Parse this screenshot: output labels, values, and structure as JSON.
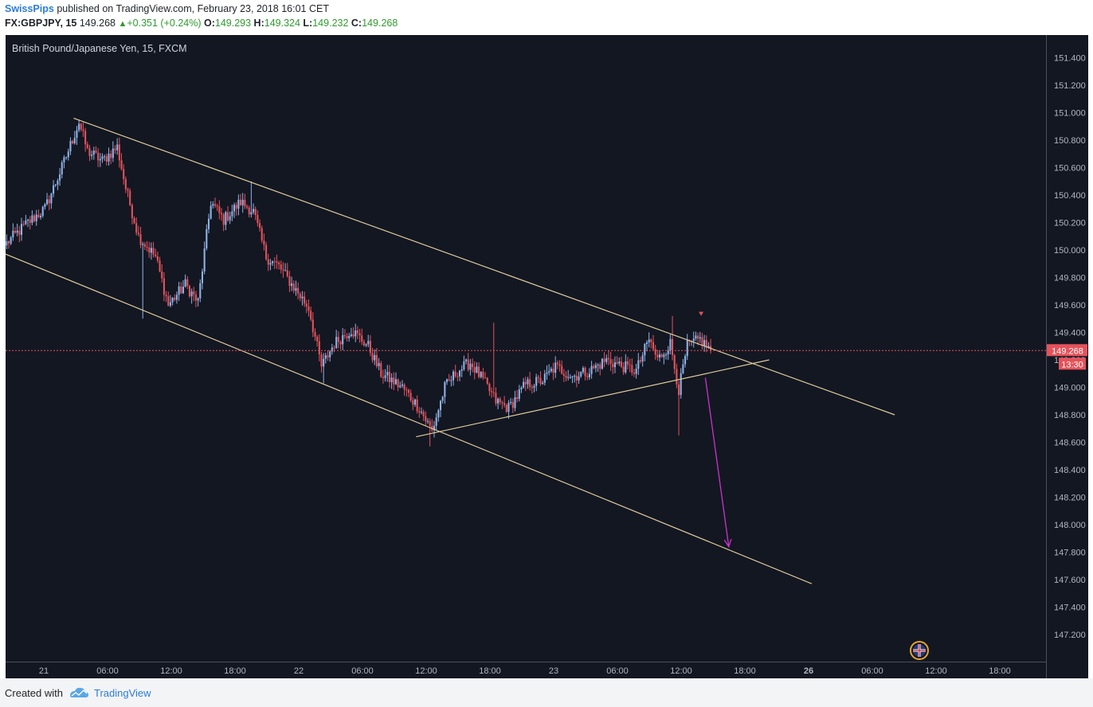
{
  "header": {
    "author": "SwissPips",
    "published": "published on TradingView.com, February 23, 2018 16:01 CET",
    "symbol": "FX:GBPJPY, 15",
    "price": "149.268",
    "change": "+0.351 (+0.24%)",
    "o_label": "O:",
    "o_val": "149.293",
    "h_label": "H:",
    "h_val": "149.324",
    "l_label": "L:",
    "l_val": "149.232",
    "c_label": "C:",
    "c_val": "149.268"
  },
  "footer": {
    "created_with": "Created with",
    "brand": "TradingView"
  },
  "chart_data": {
    "type": "candlestick",
    "title": "British Pound/Japanese Yen, 15, FXCM",
    "ylim": [
      147.0,
      151.6
    ],
    "y_ticks": [
      151.4,
      151.2,
      151.0,
      150.8,
      150.6,
      150.4,
      150.2,
      150.0,
      149.8,
      149.6,
      149.4,
      149.2,
      149.0,
      148.8,
      148.6,
      148.4,
      148.2,
      148.0,
      147.8,
      147.6,
      147.4,
      147.2
    ],
    "x_ticks": [
      "21",
      "06:00",
      "12:00",
      "18:00",
      "22",
      "06:00",
      "12:00",
      "18:00",
      "23",
      "06:00",
      "12:00",
      "18:00",
      "26",
      "06:00",
      "12:00",
      "18:00"
    ],
    "bold_x_ticks": [
      "26"
    ],
    "current_price": "149.268",
    "countdown": "13:30",
    "colors": {
      "background": "#131722",
      "up": "#8fb3e8",
      "down": "#e5535b",
      "trendline": "#e0cc9a",
      "arrow": "#cc33cc",
      "price_line": "#e5535b"
    },
    "anchors": [
      {
        "bar": 0,
        "price": 150.05
      },
      {
        "bar": 10,
        "price": 150.2
      },
      {
        "bar": 18,
        "price": 150.3
      },
      {
        "bar": 26,
        "price": 150.6
      },
      {
        "bar": 34,
        "price": 150.93
      },
      {
        "bar": 38,
        "price": 150.72
      },
      {
        "bar": 45,
        "price": 150.65
      },
      {
        "bar": 52,
        "price": 150.75
      },
      {
        "bar": 56,
        "price": 150.45
      },
      {
        "bar": 62,
        "price": 150.1
      },
      {
        "bar": 70,
        "price": 149.95
      },
      {
        "bar": 76,
        "price": 149.6
      },
      {
        "bar": 84,
        "price": 149.75
      },
      {
        "bar": 90,
        "price": 149.62
      },
      {
        "bar": 96,
        "price": 150.35
      },
      {
        "bar": 102,
        "price": 150.22
      },
      {
        "bar": 110,
        "price": 150.35
      },
      {
        "bar": 116,
        "price": 150.28
      },
      {
        "bar": 122,
        "price": 149.95
      },
      {
        "bar": 128,
        "price": 149.88
      },
      {
        "bar": 134,
        "price": 149.75
      },
      {
        "bar": 142,
        "price": 149.58
      },
      {
        "bar": 148,
        "price": 149.15
      },
      {
        "bar": 154,
        "price": 149.32
      },
      {
        "bar": 162,
        "price": 149.42
      },
      {
        "bar": 170,
        "price": 149.3
      },
      {
        "bar": 176,
        "price": 149.1
      },
      {
        "bar": 186,
        "price": 149.0
      },
      {
        "bar": 194,
        "price": 148.85
      },
      {
        "bar": 200,
        "price": 148.68
      },
      {
        "bar": 206,
        "price": 149.0
      },
      {
        "bar": 212,
        "price": 149.12
      },
      {
        "bar": 218,
        "price": 149.18
      },
      {
        "bar": 224,
        "price": 149.05
      },
      {
        "bar": 230,
        "price": 148.9
      },
      {
        "bar": 236,
        "price": 148.85
      },
      {
        "bar": 244,
        "price": 149.02
      },
      {
        "bar": 252,
        "price": 149.05
      },
      {
        "bar": 258,
        "price": 149.15
      },
      {
        "bar": 266,
        "price": 149.08
      },
      {
        "bar": 274,
        "price": 149.12
      },
      {
        "bar": 282,
        "price": 149.2
      },
      {
        "bar": 290,
        "price": 149.15
      },
      {
        "bar": 296,
        "price": 149.12
      },
      {
        "bar": 302,
        "price": 149.35
      },
      {
        "bar": 306,
        "price": 149.2
      },
      {
        "bar": 312,
        "price": 149.32
      },
      {
        "bar": 316,
        "price": 148.98
      },
      {
        "bar": 320,
        "price": 149.3
      },
      {
        "bar": 326,
        "price": 149.35
      },
      {
        "bar": 331,
        "price": 149.27
      }
    ],
    "extreme_wicks": [
      {
        "bar": 34,
        "high": 150.95
      },
      {
        "bar": 64,
        "low": 149.5
      },
      {
        "bar": 115,
        "high": 150.5
      },
      {
        "bar": 149,
        "low": 149.03
      },
      {
        "bar": 199,
        "low": 148.57
      },
      {
        "bar": 229,
        "high": 149.47
      },
      {
        "bar": 313,
        "high": 149.52
      },
      {
        "bar": 316,
        "low": 148.65
      }
    ],
    "lines": [
      {
        "from": {
          "bar": 32,
          "price": 150.96
        },
        "to": {
          "bar": 418,
          "price": 148.8
        }
      },
      {
        "from": {
          "bar": 0,
          "price": 149.97
        },
        "to": {
          "bar": 379,
          "price": 147.57
        }
      },
      {
        "from": {
          "bar": 193,
          "price": 148.64
        },
        "to": {
          "bar": 359,
          "price": 149.2
        }
      }
    ],
    "arrow": {
      "from": {
        "bar": 329,
        "price": 149.07
      },
      "to": {
        "bar": 340,
        "price": 147.84
      }
    }
  }
}
